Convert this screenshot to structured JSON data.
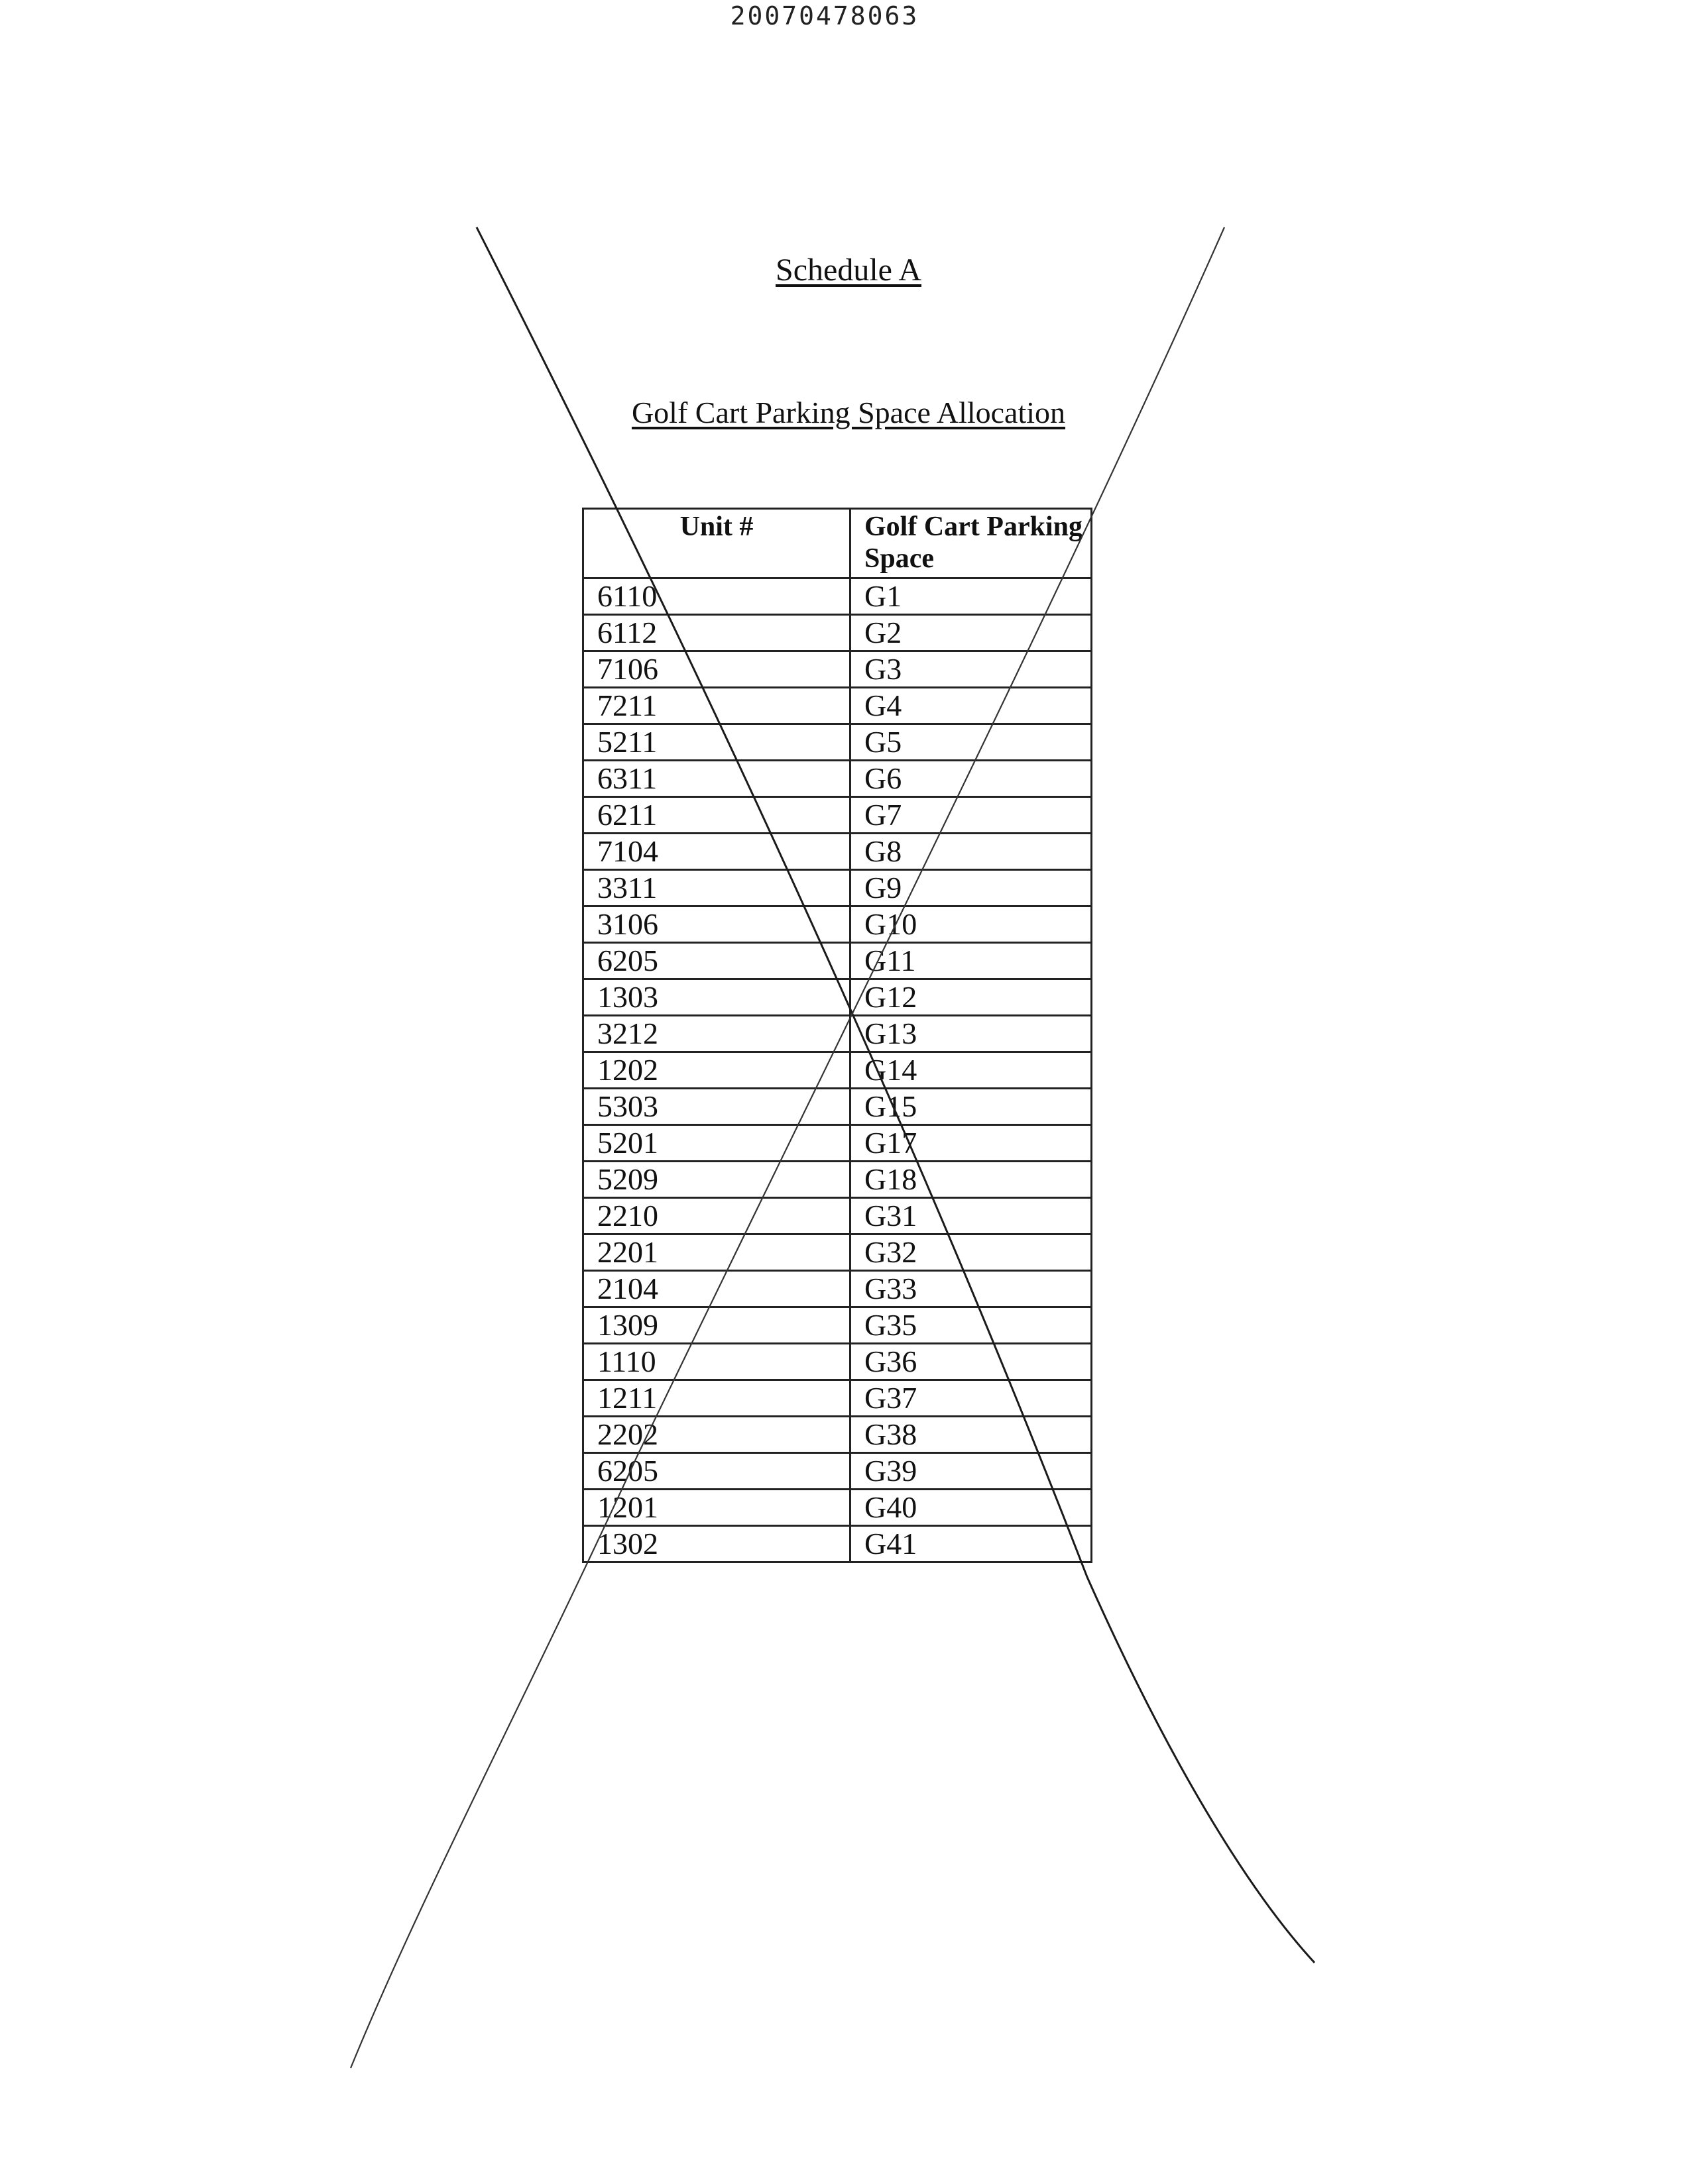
{
  "document_number": "20070478063",
  "title": "Schedule A",
  "subtitle": "Golf Cart Parking Space Allocation",
  "table": {
    "headers": [
      "Unit #",
      "Golf Cart Parking Space"
    ],
    "rows": [
      [
        "6110",
        "G1"
      ],
      [
        "6112",
        "G2"
      ],
      [
        "7106",
        "G3"
      ],
      [
        "7211",
        "G4"
      ],
      [
        "5211",
        "G5"
      ],
      [
        "6311",
        "G6"
      ],
      [
        "6211",
        "G7"
      ],
      [
        "7104",
        "G8"
      ],
      [
        "3311",
        "G9"
      ],
      [
        "3106",
        "G10"
      ],
      [
        "6205",
        "G11"
      ],
      [
        "1303",
        "G12"
      ],
      [
        "3212",
        "G13"
      ],
      [
        "1202",
        "G14"
      ],
      [
        "5303",
        "G15"
      ],
      [
        "5201",
        "G17"
      ],
      [
        "5209",
        "G18"
      ],
      [
        "2210",
        "G31"
      ],
      [
        "2201",
        "G32"
      ],
      [
        "2104",
        "G33"
      ],
      [
        "1309",
        "G35"
      ],
      [
        "1110",
        "G36"
      ],
      [
        "1211",
        "G37"
      ],
      [
        "2202",
        "G38"
      ],
      [
        "6205",
        "G39"
      ],
      [
        "1201",
        "G40"
      ],
      [
        "1302",
        "G41"
      ]
    ]
  },
  "annotations": {
    "cross_out": true,
    "stroke_color": "#1a1a1a"
  }
}
